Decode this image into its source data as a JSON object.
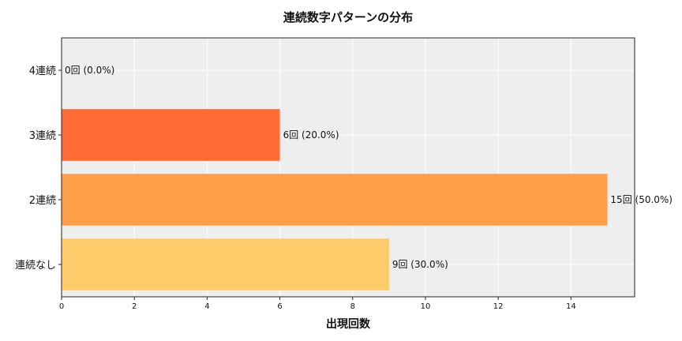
{
  "chart_data": {
    "type": "bar",
    "orientation": "horizontal",
    "title": "連続数字パターンの分布",
    "xlabel": "出現回数",
    "ylabel": "",
    "categories": [
      "4連続",
      "3連続",
      "2連続",
      "連続なし"
    ],
    "values": [
      0,
      6,
      15,
      9
    ],
    "data_labels": [
      "0回 (0.0%)",
      "6回 (20.0%)",
      "15回 (50.0%)",
      "9回 (30.0%)"
    ],
    "colors": [
      "#FF5722",
      "#FF6B35",
      "#FFA048",
      "#FFCC6B"
    ],
    "xlim": [
      0,
      15.75
    ],
    "xticks": [
      0,
      2,
      4,
      6,
      8,
      10,
      12,
      14
    ],
    "grid": true,
    "background": "#EEEEEE"
  }
}
